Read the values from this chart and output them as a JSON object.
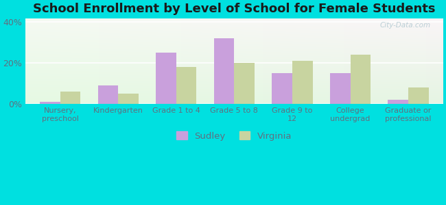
{
  "title": "School Enrollment by Level of School for Female Students",
  "categories": [
    "Nursery,\npreschool",
    "Kindergarten",
    "Grade 1 to 4",
    "Grade 5 to 8",
    "Grade 9 to\n12",
    "College\nundergrad",
    "Graduate or\nprofessional"
  ],
  "sudley": [
    1,
    9,
    25,
    32,
    15,
    15,
    2
  ],
  "virginia": [
    6,
    5,
    18,
    20,
    21,
    24,
    8
  ],
  "sudley_color": "#c9a0dc",
  "virginia_color": "#c8d4a0",
  "background_color": "#00e0e0",
  "yticks": [
    0,
    20,
    40
  ],
  "ylim": [
    0,
    42
  ],
  "title_fontsize": 13,
  "legend_labels": [
    "Sudley",
    "Virginia"
  ],
  "bar_width": 0.35,
  "grad_top_left": "#e8f5e0",
  "grad_top_right": "#f5f5f0",
  "grad_bottom": "#d8ecd0",
  "watermark_text": "City-Data.com",
  "watermark_color": "#b0c8d0",
  "tick_color": "#607080",
  "xlabel_fontsize": 8,
  "ylabel_fontsize": 9
}
